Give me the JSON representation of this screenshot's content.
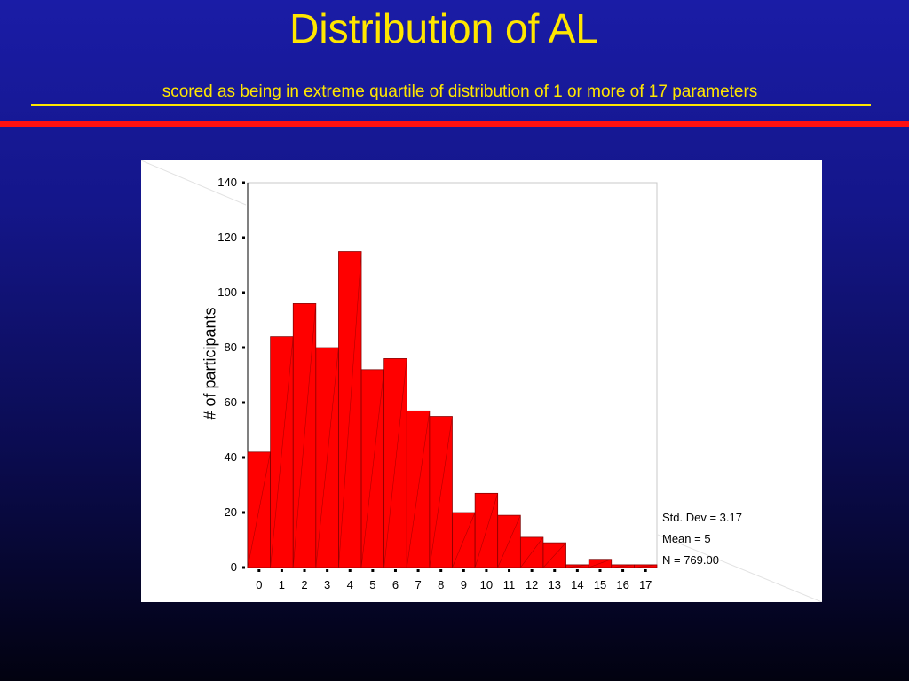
{
  "slide": {
    "title": "Distribution of AL",
    "subtitle": "scored as being in extreme quartile of distribution of 1 or more of 17 parameters",
    "colors": {
      "background": "#1a1ca6",
      "title": "#ffe600",
      "rule_yellow": "#ffe600",
      "rule_red": "#ff1111"
    }
  },
  "chart_data": {
    "type": "bar",
    "title": "",
    "xlabel": "",
    "ylabel": "# of participants",
    "categories": [
      "0",
      "1",
      "2",
      "3",
      "4",
      "5",
      "6",
      "7",
      "8",
      "9",
      "10",
      "11",
      "12",
      "13",
      "14",
      "15",
      "16",
      "17"
    ],
    "values": [
      42,
      84,
      96,
      80,
      115,
      72,
      76,
      57,
      55,
      20,
      27,
      19,
      11,
      9,
      1,
      3,
      1,
      1
    ],
    "ylim": [
      0,
      140
    ],
    "yticks": [
      "0",
      "20",
      "40",
      "60",
      "80",
      "100",
      "120",
      "140"
    ],
    "bar_color": "#ff0000",
    "grid": false,
    "legend": "none",
    "stats": [
      "Std. Dev = 3.17",
      "Mean = 5",
      "N = 769.00"
    ]
  }
}
